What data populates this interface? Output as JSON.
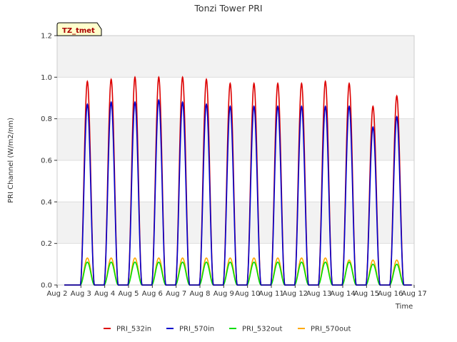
{
  "chart_data": {
    "type": "line",
    "title": "Tonzi Tower PRI",
    "xlabel": "Time",
    "ylabel": "PRI Channel (W/m2/nm)",
    "xlim": [
      2,
      17
    ],
    "ylim": [
      0,
      1.2
    ],
    "yticks": [
      0.0,
      0.2,
      0.4,
      0.6,
      0.8,
      1.0,
      1.2
    ],
    "ytick_labels": [
      "0.0",
      "0.2",
      "0.4",
      "0.6",
      "0.8",
      "1.0",
      "1.2"
    ],
    "xticks": [
      2,
      3,
      4,
      5,
      6,
      7,
      8,
      9,
      10,
      11,
      12,
      13,
      14,
      15,
      16,
      17
    ],
    "xtick_labels": [
      "Aug 2",
      "Aug 3",
      "Aug 4",
      "Aug 5",
      "Aug 6",
      "Aug 7",
      "Aug 8",
      "Aug 9",
      "Aug 10",
      "Aug 11",
      "Aug 12",
      "Aug 13",
      "Aug 14",
      "Aug 15",
      "Aug 16",
      "Aug 17"
    ],
    "annotation": "TZ_tmet",
    "legend_position": "bottom-center",
    "day_peaks": {
      "days": [
        3,
        4,
        5,
        6,
        7,
        8,
        9,
        10,
        11,
        12,
        13,
        14,
        15,
        16
      ],
      "noon_offset": 0.27,
      "half_width": 0.3
    },
    "series": [
      {
        "name": "PRI_532in",
        "color": "#dd0000",
        "peaks": [
          0.98,
          0.99,
          1.0,
          1.0,
          1.0,
          0.99,
          0.97,
          0.97,
          0.97,
          0.97,
          0.98,
          0.97,
          0.86,
          0.91
        ]
      },
      {
        "name": "PRI_570in",
        "color": "#0000cc",
        "peaks": [
          0.87,
          0.88,
          0.88,
          0.89,
          0.88,
          0.87,
          0.86,
          0.86,
          0.86,
          0.86,
          0.86,
          0.86,
          0.76,
          0.81
        ]
      },
      {
        "name": "PRI_532out",
        "color": "#00dd00",
        "peaks": [
          0.11,
          0.11,
          0.11,
          0.11,
          0.11,
          0.11,
          0.11,
          0.11,
          0.11,
          0.11,
          0.11,
          0.11,
          0.1,
          0.1
        ]
      },
      {
        "name": "PRI_570out",
        "color": "#ffaa00",
        "peaks": [
          0.13,
          0.13,
          0.13,
          0.13,
          0.13,
          0.13,
          0.13,
          0.13,
          0.13,
          0.13,
          0.13,
          0.12,
          0.12,
          0.12
        ]
      }
    ]
  }
}
